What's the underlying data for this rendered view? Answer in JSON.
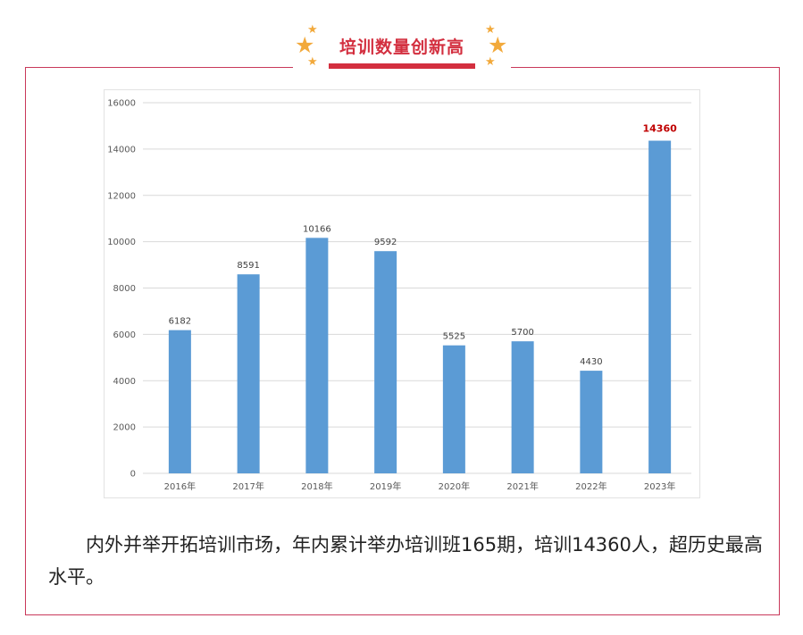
{
  "header": {
    "title": "培训数量创新高",
    "accent_color": "#d32f3f",
    "star_color": "#f2a93b",
    "star_icon": "star-icon"
  },
  "chart_data": {
    "type": "bar",
    "categories": [
      "2016年",
      "2017年",
      "2018年",
      "2019年",
      "2020年",
      "2021年",
      "2022年",
      "2023年"
    ],
    "values": [
      6182,
      8591,
      10166,
      9592,
      5525,
      5700,
      4430,
      14360
    ],
    "value_labels": [
      "6182",
      "8591",
      "10166",
      "9592",
      "5525",
      "5700",
      "4430",
      "14360"
    ],
    "highlight_index": 7,
    "ylim": [
      0,
      16000
    ],
    "yticks": [
      "0",
      "2000",
      "4000",
      "6000",
      "8000",
      "10000",
      "12000",
      "14000",
      "16000"
    ],
    "grid": true,
    "bar_color": "#5b9bd5",
    "highlight_label_color": "#c00000",
    "title": "",
    "xlabel": "",
    "ylabel": ""
  },
  "paragraph": {
    "text": "内外并举开拓培训市场，年内累计举办培训班165期，培训14360人，超历史最高水平。"
  }
}
